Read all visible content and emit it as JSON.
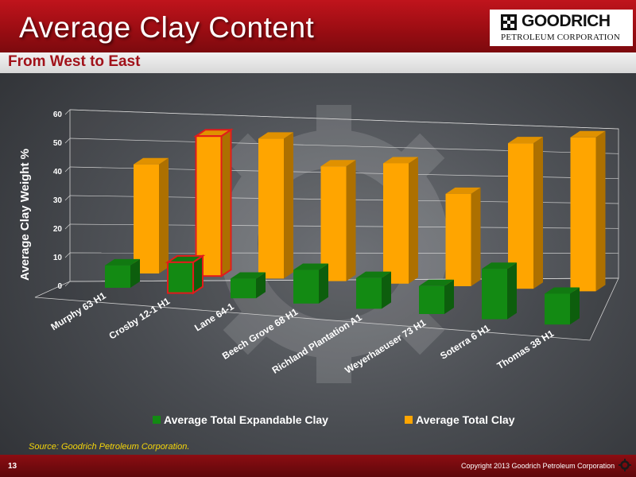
{
  "header": {
    "title": "Average Clay Content",
    "subtitle": "From West to East"
  },
  "logo": {
    "name": "GOODRICH",
    "subline": "PETROLEUM CORPORATION"
  },
  "footer": {
    "source": "Source: Goodrich Petroleum Corporation.",
    "page_number": "13",
    "copyright": "Copyright 2013 Goodrich Petroleum Corporation"
  },
  "colors": {
    "header_red": "#b3111a",
    "expandable_green": "#138a13",
    "total_orange": "#ffa500",
    "highlight_outline": "#e21b1b",
    "axis_text": "#ffffff"
  },
  "chart_data": {
    "type": "bar",
    "style": "3d-clustered",
    "ylabel": "Average Clay Weight %",
    "xlabel": "",
    "ylim": [
      0,
      60
    ],
    "y_ticks": [
      "0",
      "10",
      "20",
      "30",
      "40",
      "50",
      "60"
    ],
    "grid": true,
    "legend_position": "bottom",
    "categories": [
      "Murphy 63 H1",
      "Crosby 12-1 H1",
      "Lane 64-1",
      "Beech Grove 68 H1",
      "Richland Plantation A1",
      "Weyerhaeuser 73 H1",
      "Soterra 6 H1",
      "Thomas 38 H1"
    ],
    "series": [
      {
        "name": "Average Total Expandable Clay",
        "values": [
          8,
          11,
          7,
          12,
          11,
          10,
          18,
          11
        ],
        "color": "#138a13"
      },
      {
        "name": "Average Total Clay",
        "values": [
          39,
          50,
          50,
          41,
          43,
          33,
          52,
          55
        ],
        "color": "#ffa500"
      }
    ],
    "highlighted_category": "Crosby 12-1 H1"
  }
}
